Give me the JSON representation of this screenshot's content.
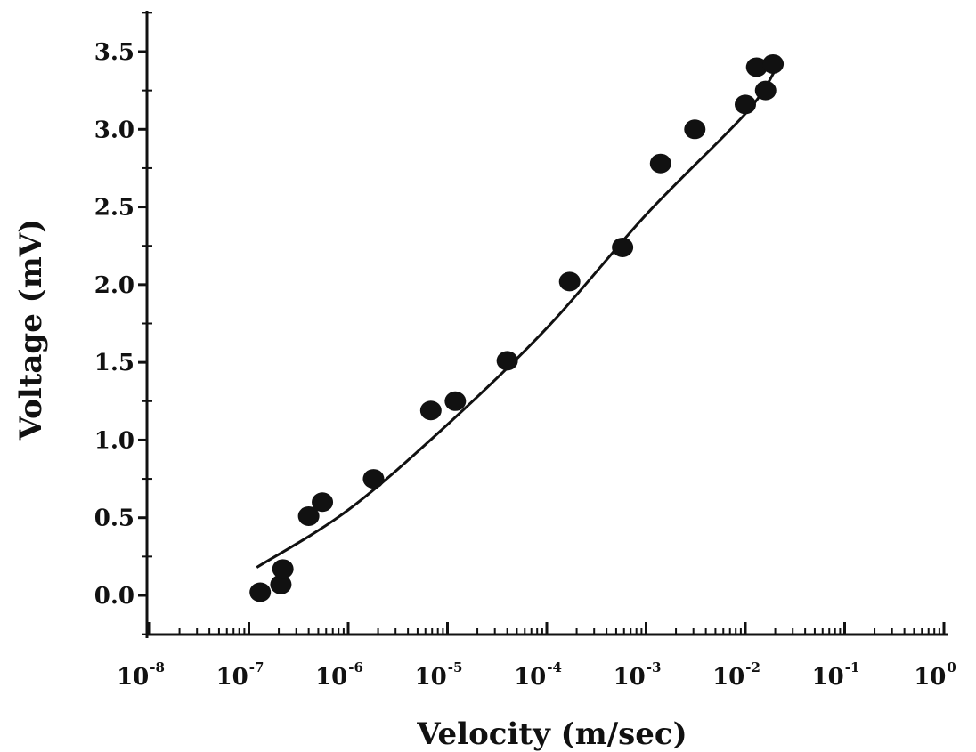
{
  "chart_data": {
    "type": "scatter",
    "title": "",
    "xlabel": "Velocity (m/sec)",
    "ylabel": "Voltage (mV)",
    "x_scale": "log",
    "xlim": [
      1e-08,
      1
    ],
    "ylim": [
      -0.25,
      3.7
    ],
    "grid": false,
    "legend": "none",
    "x_ticks": [
      {
        "base": "10",
        "exp": "-8"
      },
      {
        "base": "10",
        "exp": "-7"
      },
      {
        "base": "10",
        "exp": "-6"
      },
      {
        "base": "10",
        "exp": "-5"
      },
      {
        "base": "10",
        "exp": "-4"
      },
      {
        "base": "10",
        "exp": "-3"
      },
      {
        "base": "10",
        "exp": "-2"
      },
      {
        "base": "10",
        "exp": "-1"
      },
      {
        "base": "10",
        "exp": "0"
      }
    ],
    "y_ticks": [
      "0.0",
      "0.5",
      "1.0",
      "1.5",
      "2.0",
      "2.5",
      "3.0",
      "3.5"
    ],
    "points": [
      {
        "x": 1.3e-07,
        "y": 0.02
      },
      {
        "x": 2.1e-07,
        "y": 0.07
      },
      {
        "x": 2.2e-07,
        "y": 0.17
      },
      {
        "x": 4e-07,
        "y": 0.51
      },
      {
        "x": 5.5e-07,
        "y": 0.6
      },
      {
        "x": 1.8e-06,
        "y": 0.75
      },
      {
        "x": 6.8e-06,
        "y": 1.19
      },
      {
        "x": 1.2e-05,
        "y": 1.25
      },
      {
        "x": 4e-05,
        "y": 1.51
      },
      {
        "x": 0.00017,
        "y": 2.02
      },
      {
        "x": 0.00058,
        "y": 2.24
      },
      {
        "x": 0.0014,
        "y": 2.78
      },
      {
        "x": 0.0031,
        "y": 3.0
      },
      {
        "x": 0.01,
        "y": 3.16
      },
      {
        "x": 0.013,
        "y": 3.4
      },
      {
        "x": 0.016,
        "y": 3.25
      },
      {
        "x": 0.019,
        "y": 3.42
      }
    ],
    "fit_line": [
      {
        "x": 1.2e-07,
        "y": 0.18
      },
      {
        "x": 1e-06,
        "y": 0.55
      },
      {
        "x": 1e-05,
        "y": 1.1
      },
      {
        "x": 0.0001,
        "y": 1.72
      },
      {
        "x": 0.001,
        "y": 2.45
      },
      {
        "x": 0.01,
        "y": 3.1
      },
      {
        "x": 0.02,
        "y": 3.38
      }
    ],
    "colors": {
      "marker": "#111111",
      "line": "#111111",
      "axis": "#111111"
    }
  }
}
